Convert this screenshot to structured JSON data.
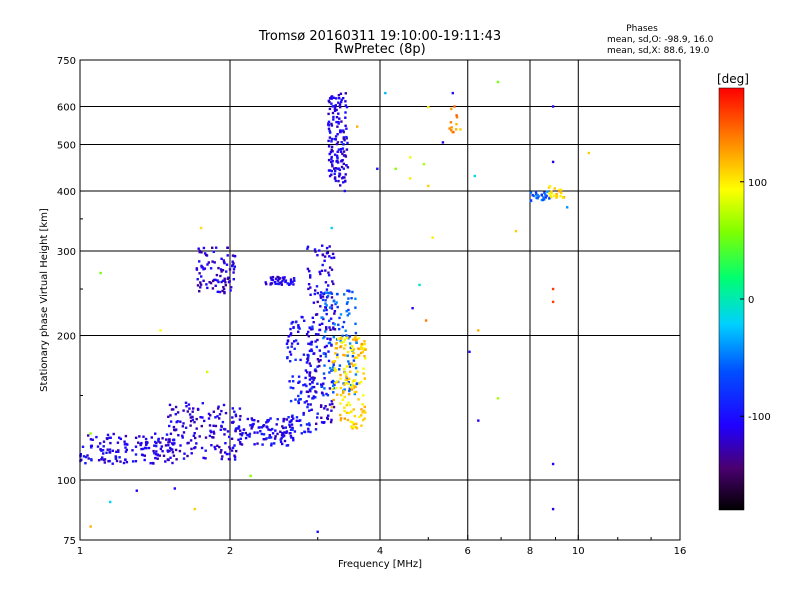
{
  "chart_data": {
    "type": "scatter",
    "title": "Tromsø 20160311 19:10:00-19:11:43",
    "subtitle": "RwPretec (8p)",
    "xlabel": "Frequency [MHz]",
    "ylabel": "Stationary phase Virtual Height [km]",
    "x_scale": "log",
    "y_scale": "log",
    "xlim": [
      1,
      16
    ],
    "ylim": [
      75,
      750
    ],
    "x_ticks": [
      1,
      2,
      4,
      6,
      8,
      10,
      16
    ],
    "x_tick_labels": [
      "1",
      "2",
      "4",
      "6",
      "8",
      "10",
      "16"
    ],
    "y_ticks": [
      75,
      100,
      200,
      300,
      400,
      500,
      600,
      750
    ],
    "y_tick_labels": [
      "75",
      "100",
      "200",
      "300",
      "400",
      "500",
      "600",
      "750"
    ],
    "grid": true,
    "phase_box": {
      "heading": "Phases",
      "line_o": "mean, sd,O: -98.9, 16.0",
      "line_x": "mean, sd,X:  88.6, 19.0"
    },
    "colorbar": {
      "label": "[deg]",
      "range": [
        -180,
        180
      ],
      "ticks": [
        100,
        0,
        -100
      ],
      "tick_labels": [
        "100",
        "0",
        "-100"
      ]
    },
    "clusters": [
      {
        "f": [
          1.0,
          1.55
        ],
        "h": [
          108,
          125
        ],
        "phase": -110,
        "count": 150
      },
      {
        "f": [
          1.5,
          2.1
        ],
        "h": [
          110,
          145
        ],
        "phase": -115,
        "count": 150
      },
      {
        "f": [
          2.05,
          2.7
        ],
        "h": [
          118,
          135
        ],
        "phase": -108,
        "count": 110
      },
      {
        "f": [
          2.6,
          3.0
        ],
        "h": [
          125,
          220
        ],
        "phase": -95,
        "count": 120
      },
      {
        "f": [
          2.85,
          3.25
        ],
        "h": [
          130,
          310
        ],
        "phase": -112,
        "count": 170
      },
      {
        "f": [
          3.05,
          3.6
        ],
        "h": [
          150,
          250
        ],
        "phase": -60,
        "count": 110
      },
      {
        "f": [
          3.2,
          3.75
        ],
        "h": [
          128,
          200
        ],
        "phase": 110,
        "count": 150
      },
      {
        "f": [
          3.15,
          3.45
        ],
        "h": [
          410,
          640
        ],
        "phase": -112,
        "count": 150
      },
      {
        "f": [
          1.7,
          2.05
        ],
        "h": [
          245,
          305
        ],
        "phase": -118,
        "count": 90
      },
      {
        "f": [
          2.35,
          2.7
        ],
        "h": [
          255,
          265
        ],
        "phase": -112,
        "count": 40
      },
      {
        "f": [
          8.0,
          8.8
        ],
        "h": [
          380,
          400
        ],
        "phase": -60,
        "count": 25
      },
      {
        "f": [
          8.7,
          9.4
        ],
        "h": [
          385,
          410
        ],
        "phase": 110,
        "count": 20
      },
      {
        "f": [
          5.5,
          5.8
        ],
        "h": [
          530,
          610
        ],
        "phase": 130,
        "count": 12
      }
    ],
    "sparse_points": [
      {
        "x": 1.1,
        "y": 270,
        "phase": 55
      },
      {
        "x": 1.05,
        "y": 125,
        "phase": 60
      },
      {
        "x": 1.75,
        "y": 335,
        "phase": 105
      },
      {
        "x": 1.45,
        "y": 205,
        "phase": 95
      },
      {
        "x": 1.8,
        "y": 168,
        "phase": 80
      },
      {
        "x": 1.7,
        "y": 87,
        "phase": 110
      },
      {
        "x": 1.05,
        "y": 80,
        "phase": 120
      },
      {
        "x": 1.15,
        "y": 90,
        "phase": -20
      },
      {
        "x": 2.2,
        "y": 102,
        "phase": 60
      },
      {
        "x": 1.55,
        "y": 96,
        "phase": -105
      },
      {
        "x": 1.3,
        "y": 95,
        "phase": -110
      },
      {
        "x": 2.6,
        "y": 118,
        "phase": -95
      },
      {
        "x": 3.0,
        "y": 78,
        "phase": -100
      },
      {
        "x": 3.2,
        "y": 335,
        "phase": -15
      },
      {
        "x": 3.4,
        "y": 400,
        "phase": -100
      },
      {
        "x": 3.6,
        "y": 545,
        "phase": 120
      },
      {
        "x": 3.95,
        "y": 445,
        "phase": -100
      },
      {
        "x": 4.1,
        "y": 640,
        "phase": -30
      },
      {
        "x": 4.3,
        "y": 445,
        "phase": 60
      },
      {
        "x": 4.6,
        "y": 470,
        "phase": 90
      },
      {
        "x": 4.6,
        "y": 425,
        "phase": 100
      },
      {
        "x": 4.9,
        "y": 455,
        "phase": 70
      },
      {
        "x": 5.0,
        "y": 410,
        "phase": 110
      },
      {
        "x": 5.1,
        "y": 320,
        "phase": 100
      },
      {
        "x": 4.8,
        "y": 255,
        "phase": -10
      },
      {
        "x": 4.65,
        "y": 228,
        "phase": -110
      },
      {
        "x": 4.95,
        "y": 215,
        "phase": 140
      },
      {
        "x": 5.0,
        "y": 598,
        "phase": 100
      },
      {
        "x": 5.35,
        "y": 505,
        "phase": -110
      },
      {
        "x": 6.05,
        "y": 185,
        "phase": -100
      },
      {
        "x": 6.2,
        "y": 430,
        "phase": -20
      },
      {
        "x": 6.3,
        "y": 205,
        "phase": 120
      },
      {
        "x": 6.3,
        "y": 133,
        "phase": -110
      },
      {
        "x": 6.9,
        "y": 675,
        "phase": 55
      },
      {
        "x": 6.9,
        "y": 148,
        "phase": 70
      },
      {
        "x": 7.5,
        "y": 330,
        "phase": 110
      },
      {
        "x": 8.9,
        "y": 600,
        "phase": -110
      },
      {
        "x": 8.9,
        "y": 460,
        "phase": -112
      },
      {
        "x": 8.9,
        "y": 250,
        "phase": 160
      },
      {
        "x": 8.9,
        "y": 235,
        "phase": 160
      },
      {
        "x": 8.9,
        "y": 108,
        "phase": -110
      },
      {
        "x": 8.9,
        "y": 87,
        "phase": -115
      },
      {
        "x": 9.5,
        "y": 370,
        "phase": -40
      },
      {
        "x": 10.5,
        "y": 480,
        "phase": 110
      },
      {
        "x": 5.6,
        "y": 640,
        "phase": -100
      },
      {
        "x": 5.7,
        "y": 575,
        "phase": 150
      }
    ]
  }
}
